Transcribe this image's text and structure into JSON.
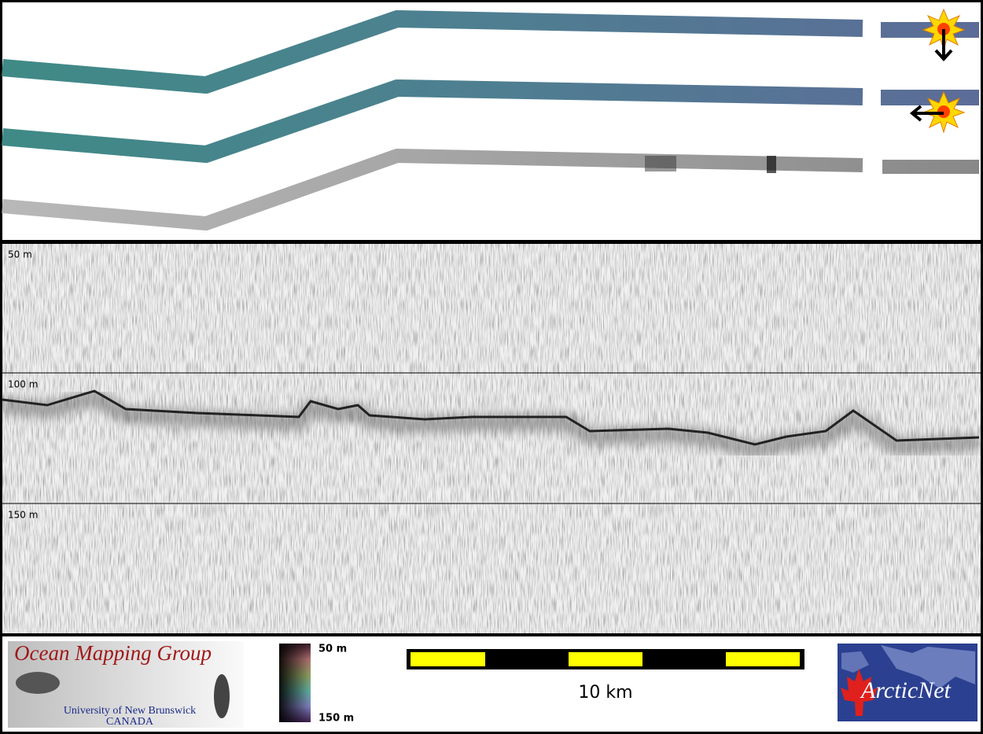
{
  "profile": {
    "depth_labels": [
      "50 m",
      "100 m",
      "150 m"
    ]
  },
  "colorbar": {
    "top_label": "50 m",
    "bottom_label": "150 m"
  },
  "scale_bar": {
    "label": "10 km"
  },
  "logos": {
    "omg": {
      "title": "Ocean Mapping Group",
      "line1": "University of New Brunswick",
      "line2": "CANADA"
    },
    "arcticnet": "ArcticNet"
  }
}
